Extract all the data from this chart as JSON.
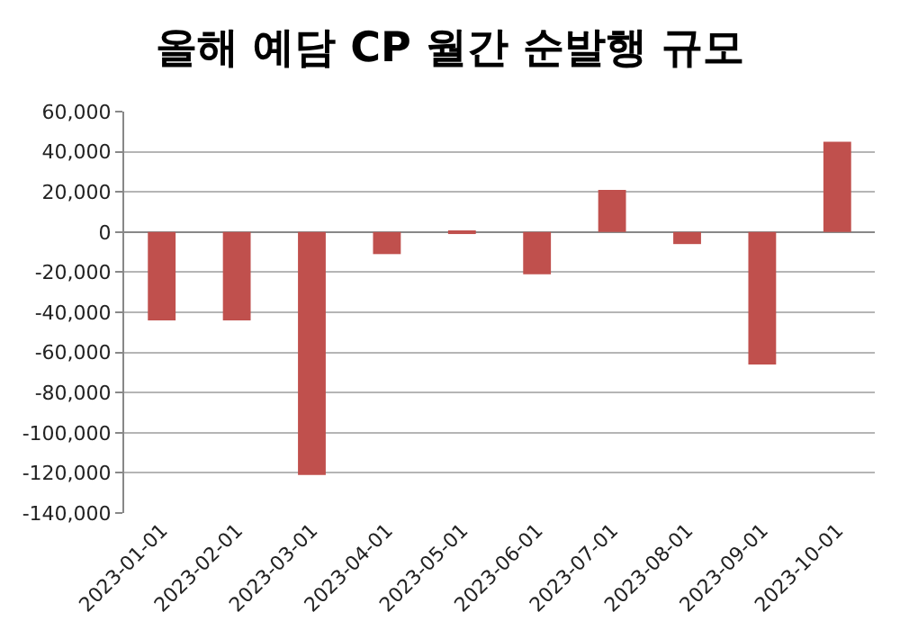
{
  "chart_data": {
    "type": "bar",
    "title": "올해 예담 CP 월간 순발행 규모",
    "categories": [
      "2023-01-01",
      "2023-02-01",
      "2023-03-01",
      "2023-04-01",
      "2023-05-01",
      "2023-06-01",
      "2023-07-01",
      "2023-08-01",
      "2023-09-01",
      "2023-10-01"
    ],
    "values": [
      -44000,
      -44000,
      -121000,
      -11000,
      -1000,
      -21000,
      21000,
      -6000,
      -66000,
      45000
    ],
    "color": "#c0504d",
    "ylim": [
      -140000,
      60000
    ],
    "yticks": [
      {
        "value": -140000,
        "label": "-140,000"
      },
      {
        "value": -120000,
        "label": "-120,000"
      },
      {
        "value": -100000,
        "label": "-100,000"
      },
      {
        "value": -80000,
        "label": "-80,000"
      },
      {
        "value": -60000,
        "label": "-60,000"
      },
      {
        "value": -40000,
        "label": "-40,000"
      },
      {
        "value": -20000,
        "label": "-20,000"
      },
      0,
      {
        "value": 20000,
        "label": "20,000"
      },
      {
        "value": 40000,
        "label": "40,000"
      },
      {
        "value": 60000,
        "label": "60,000"
      }
    ],
    "grid": "y"
  }
}
